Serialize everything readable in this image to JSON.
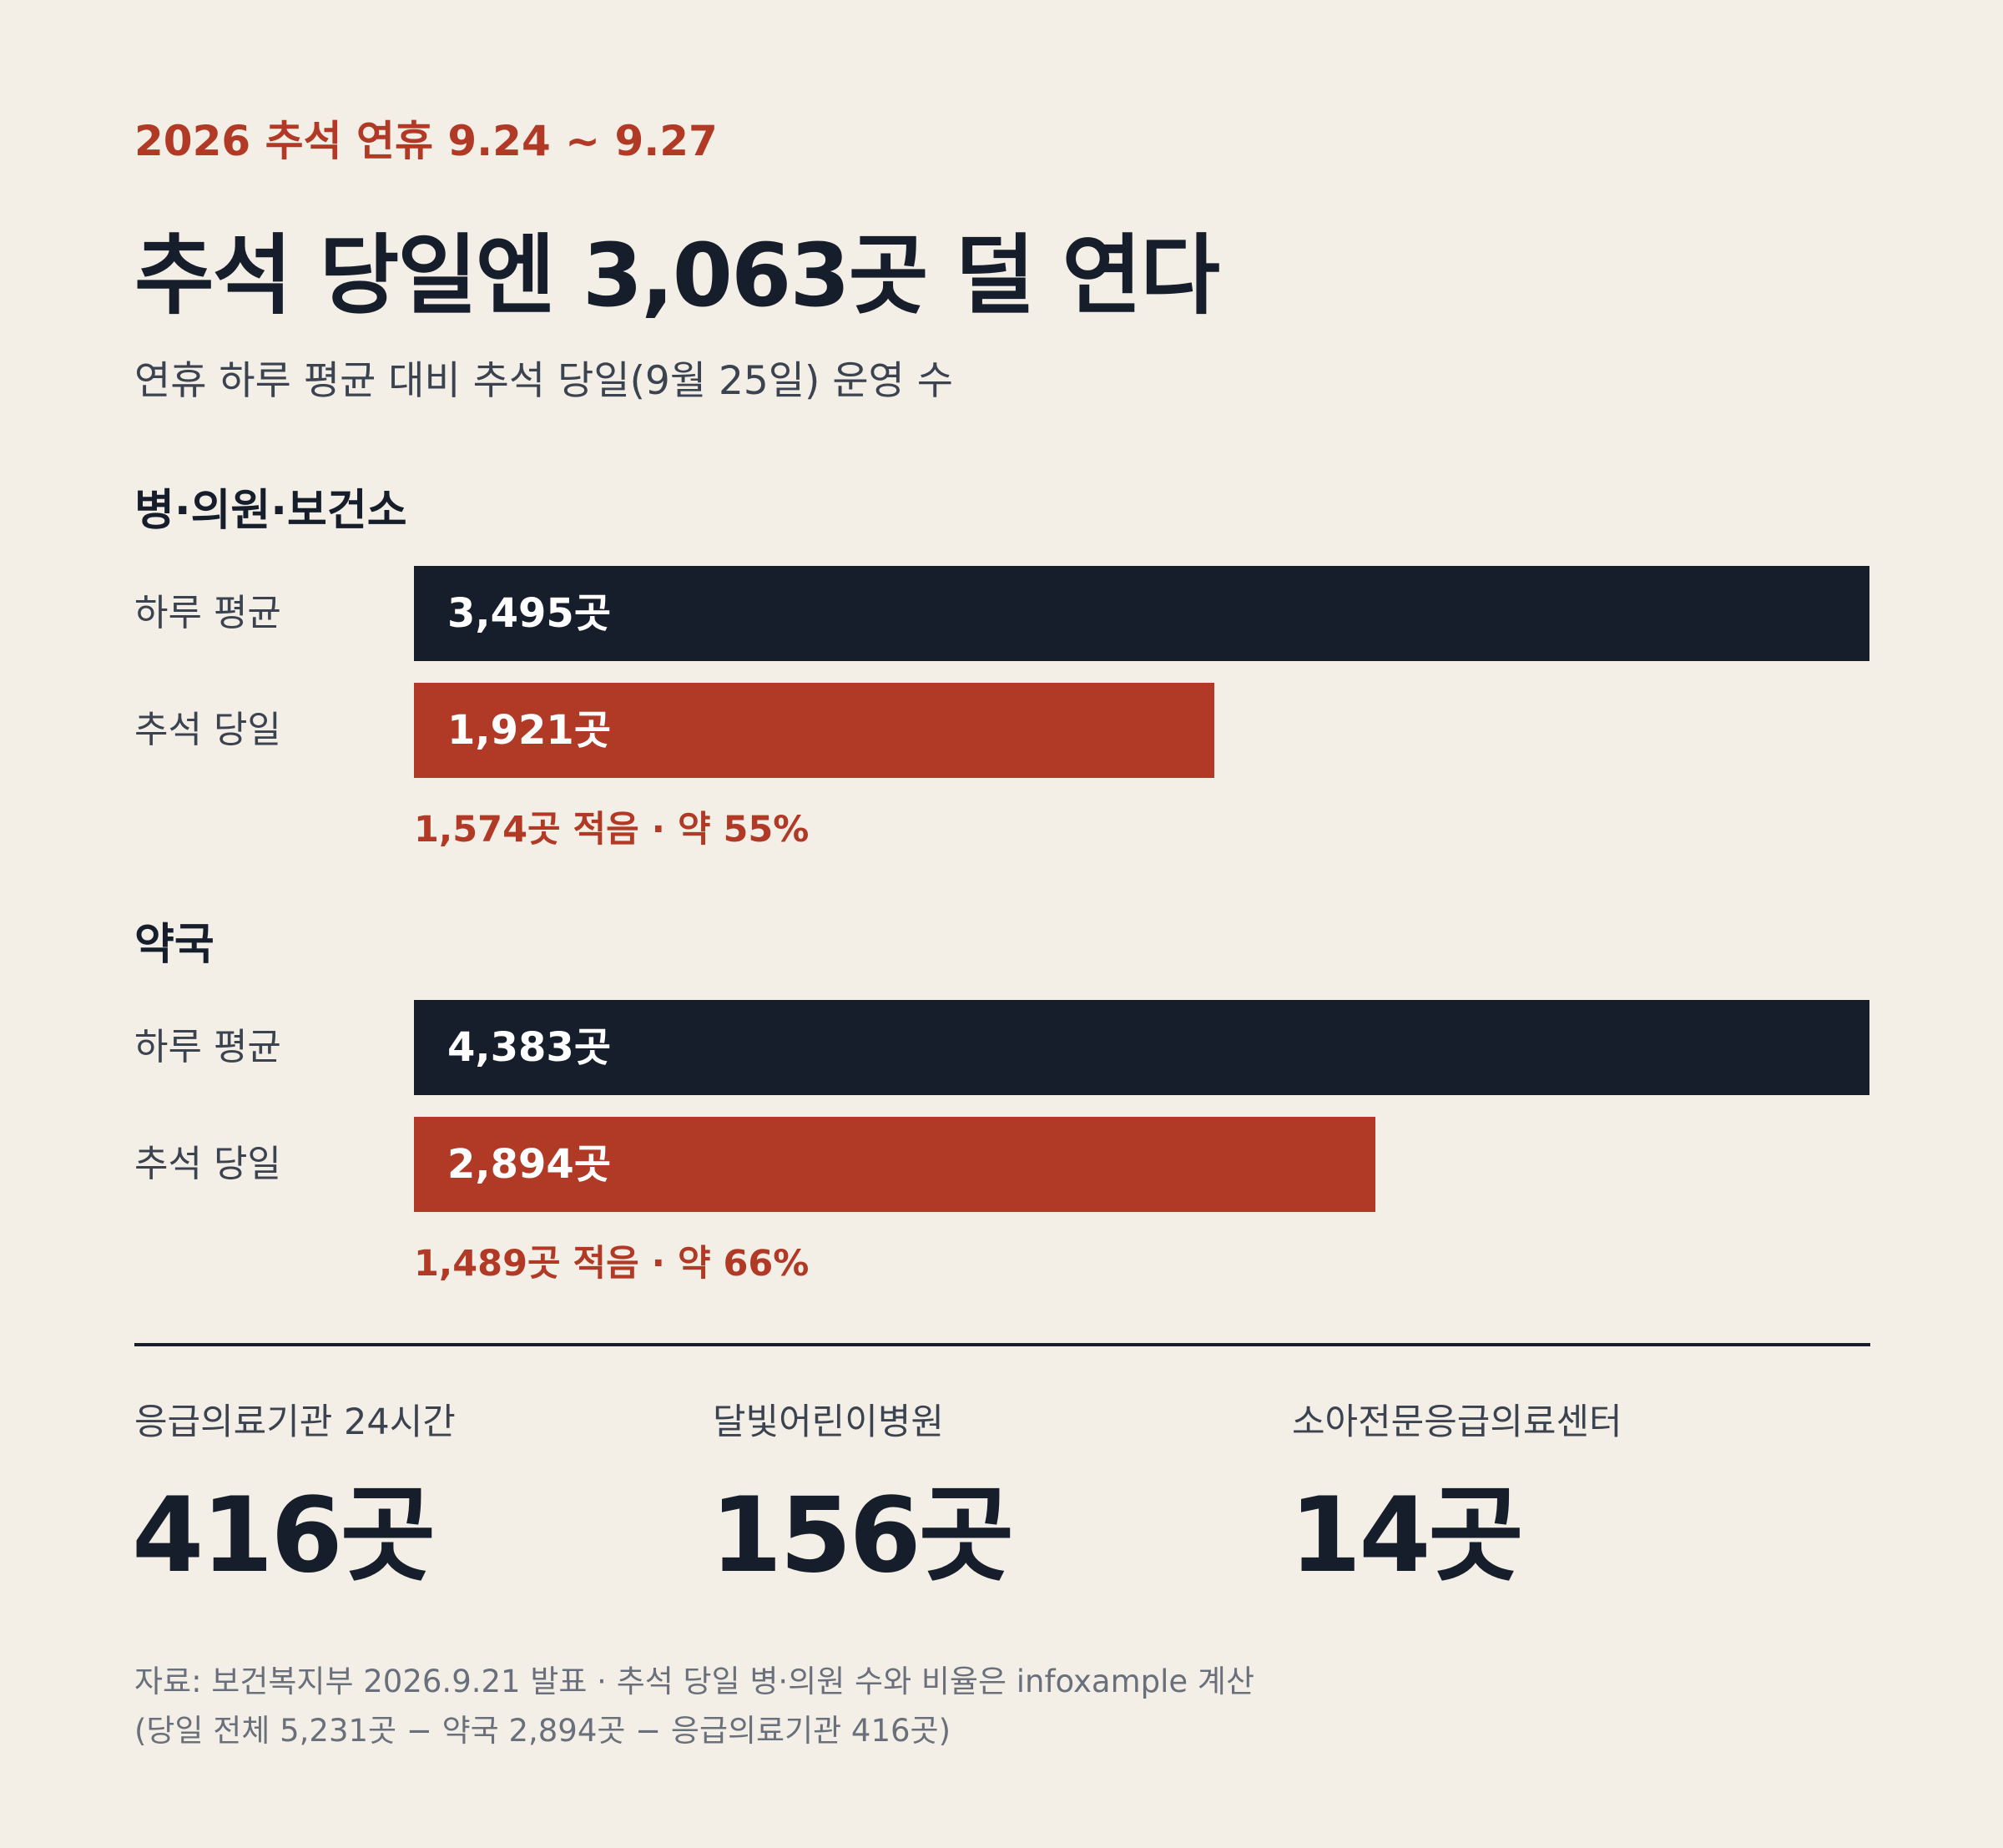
{
  "header": {
    "kicker": "2026 추석 연휴 9.24 ~ 9.27",
    "title": "추석 당일엔 3,063곳 덜 연다",
    "subtitle": "연휴 하루 평균 대비 추석 당일(9월 25일) 운영 수"
  },
  "colors": {
    "background": "#f3efe7",
    "dark": "#161e2b",
    "accent": "#b13a26"
  },
  "chart_data": {
    "type": "bar",
    "orientation": "horizontal",
    "unit": "곳",
    "groups": [
      {
        "title": "병·의원·보건소",
        "rows": [
          {
            "label": "하루 평균",
            "value": 3495,
            "value_label": "3,495곳"
          },
          {
            "label": "추석 당일",
            "value": 1921,
            "value_label": "1,921곳"
          }
        ],
        "note": "1,574곳 적음 · 약 55%"
      },
      {
        "title": "약국",
        "rows": [
          {
            "label": "하루 평균",
            "value": 4383,
            "value_label": "4,383곳"
          },
          {
            "label": "추석 당일",
            "value": 2894,
            "value_label": "2,894곳"
          }
        ],
        "note": "1,489곳 적음 · 약 66%"
      }
    ]
  },
  "stats": [
    {
      "label": "응급의료기관 24시간",
      "value": "416곳"
    },
    {
      "label": "달빛어린이병원",
      "value": "156곳"
    },
    {
      "label": "소아전문응급의료센터",
      "value": "14곳"
    }
  ],
  "footer": {
    "source_line": "자료: 보건복지부 2026.9.21 발표 · 추석 당일 병·의원 수와 비율은 infoxample 계산",
    "calc_line": "(당일 전체 5,231곳 − 약국 2,894곳 − 응급의료기관 416곳)"
  }
}
